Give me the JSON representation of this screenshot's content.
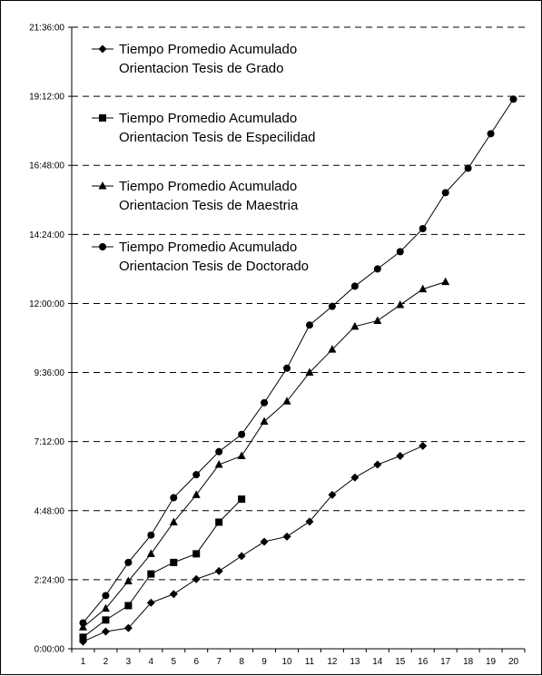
{
  "chart_data": {
    "type": "line",
    "title": "",
    "xlabel": "",
    "ylabel": "",
    "x": [
      1,
      2,
      3,
      4,
      5,
      6,
      7,
      8,
      9,
      10,
      11,
      12,
      13,
      14,
      15,
      16,
      17,
      18,
      19,
      20
    ],
    "y_ticks": [
      "0:00:00",
      "2:24:00",
      "4:48:00",
      "7:12:00",
      "9:36:00",
      "12:00:00",
      "14:24:00",
      "16:48:00",
      "19:12:00",
      "21:36:00"
    ],
    "ylim_hours": [
      0,
      21.6
    ],
    "grid": "horizontal dashed",
    "legend_position": "top-left",
    "series": [
      {
        "name": "Tiempo Promedio Acumulado Orientacion Tesis de Grado",
        "legend_lines": [
          "Tiempo Promedio Acumulado",
          "Orientacion Tesis de Grado"
        ],
        "marker": "diamond",
        "x": [
          1,
          2,
          3,
          4,
          5,
          6,
          7,
          8,
          9,
          10,
          11,
          12,
          13,
          14,
          15,
          16
        ],
        "values_hours": [
          0.25,
          0.6,
          0.72,
          1.6,
          1.9,
          2.42,
          2.7,
          3.22,
          3.72,
          3.9,
          4.42,
          5.35,
          5.95,
          6.4,
          6.7,
          7.05
        ]
      },
      {
        "name": "Tiempo Promedio  Acumulado Orientacion Tesis de Especilidad",
        "legend_lines": [
          "Tiempo Promedio  Acumulado",
          "Orientacion Tesis de Especilidad"
        ],
        "marker": "square",
        "x": [
          1,
          2,
          3,
          4,
          5,
          6,
          7,
          8
        ],
        "values_hours": [
          0.4,
          1.0,
          1.5,
          2.6,
          3.0,
          3.3,
          4.4,
          5.2
        ]
      },
      {
        "name": "Tiempo Promedio  Acumulado Orientacion Tesis de Maestria",
        "legend_lines": [
          "Tiempo Promedio  Acumulado",
          "Orientacion Tesis de Maestria"
        ],
        "marker": "triangle",
        "x": [
          1,
          2,
          3,
          4,
          5,
          6,
          7,
          8,
          9,
          10,
          11,
          12,
          13,
          14,
          15,
          16,
          17
        ],
        "values_hours": [
          0.75,
          1.4,
          2.35,
          3.3,
          4.4,
          5.35,
          6.4,
          6.7,
          7.9,
          8.6,
          9.6,
          10.4,
          11.2,
          11.4,
          11.95,
          12.5,
          12.75
        ]
      },
      {
        "name": "Tiempo Promedio  Acumulado Orientacion Tesis de Doctorado",
        "legend_lines": [
          "Tiempo Promedio  Acumulado",
          "Orientacion Tesis de Doctorado"
        ],
        "marker": "circle",
        "x": [
          1,
          2,
          3,
          4,
          5,
          6,
          7,
          8,
          9,
          10,
          11,
          12,
          13,
          14,
          15,
          16,
          17,
          18,
          19,
          20
        ],
        "values_hours": [
          0.9,
          1.85,
          3.0,
          3.95,
          5.25,
          6.05,
          6.85,
          7.45,
          8.55,
          9.75,
          11.25,
          11.9,
          12.6,
          13.2,
          13.8,
          14.6,
          15.85,
          16.7,
          17.9,
          19.1
        ]
      }
    ]
  }
}
